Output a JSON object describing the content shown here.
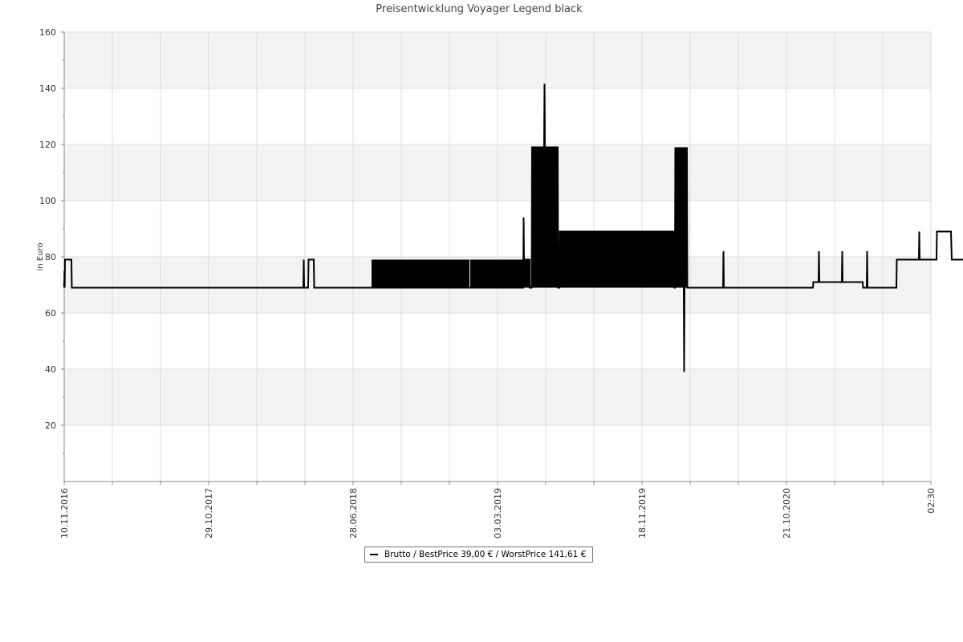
{
  "chart_data": {
    "type": "line",
    "title": "Preisentwicklung Voyager Legend black",
    "ylabel": "in Euro",
    "xlabel": "",
    "ylim": [
      0,
      160
    ],
    "yticks": [
      20,
      40,
      60,
      80,
      100,
      120,
      140,
      160
    ],
    "xticks": [
      "10.11.2016",
      "29.10.2017",
      "28.06.2018",
      "03.03.2019",
      "18.11.2019",
      "21.10.2020",
      "02:30"
    ],
    "grid": true,
    "legend_position": "bottom-center",
    "legend": {
      "name": "Brutto / BestPrice  39,00 € / WorstPrice  141,61 €"
    },
    "series": [
      {
        "color": "#000000",
        "points": [
          [
            0,
            69
          ],
          [
            0.3,
            75
          ],
          [
            0.6,
            69
          ],
          [
            1,
            79
          ],
          [
            9,
            79
          ],
          [
            9.5,
            69
          ],
          [
            298,
            69
          ],
          [
            298.5,
            79
          ],
          [
            299,
            69
          ],
          [
            304,
            69
          ],
          [
            304.5,
            79
          ],
          [
            311,
            79
          ],
          [
            311.5,
            69
          ],
          [
            500,
            69
          ],
          [
            500.5,
            79
          ],
          [
            501,
            69
          ],
          [
            572,
            69
          ],
          [
            572.5,
            94
          ],
          [
            573,
            79
          ],
          [
            580,
            79
          ],
          [
            580,
            69
          ],
          [
            582.5,
            69
          ],
          [
            583,
            119
          ],
          [
            598,
            119
          ],
          [
            598.5,
            141.6
          ],
          [
            599,
            119
          ],
          [
            615,
            119
          ],
          [
            615.5,
            69
          ],
          [
            617,
            69
          ],
          [
            617.5,
            89
          ],
          [
            760,
            89
          ],
          [
            760.5,
            69
          ],
          [
            761,
            69
          ],
          [
            761.5,
            119
          ],
          [
            776,
            119
          ],
          [
            776.5,
            69
          ],
          [
            772,
            69
          ],
          [
            772.5,
            39
          ],
          [
            773,
            69
          ],
          [
            821,
            69
          ],
          [
            821.5,
            82
          ],
          [
            822,
            69
          ],
          [
            933,
            69
          ],
          [
            933.5,
            71
          ],
          [
            940,
            71
          ],
          [
            940.5,
            82
          ],
          [
            941,
            71
          ],
          [
            969,
            71
          ],
          [
            969.5,
            82
          ],
          [
            970,
            71
          ],
          [
            995,
            71
          ],
          [
            995.5,
            69
          ],
          [
            1000,
            69
          ],
          [
            1000.5,
            82
          ],
          [
            1001,
            69
          ],
          [
            1037,
            69
          ],
          [
            1037.5,
            79
          ],
          [
            1065,
            79
          ],
          [
            1065.5,
            89
          ],
          [
            1066,
            79
          ],
          [
            1087,
            79
          ],
          [
            1087.5,
            89
          ],
          [
            1105,
            89
          ],
          [
            1105.5,
            84
          ],
          [
            1106,
            79
          ],
          [
            1160,
            79
          ]
        ],
        "dense_blocks": [
          {
            "x_from": 383,
            "x_to": 505,
            "low": 69,
            "high": 79
          },
          {
            "x_from": 506,
            "x_to": 580,
            "low": 69,
            "high": 79
          },
          {
            "x_from": 583,
            "x_to": 615,
            "low": 69,
            "high": 119
          },
          {
            "x_from": 618,
            "x_to": 760,
            "low": 69,
            "high": 89
          },
          {
            "x_from": 761,
            "x_to": 776,
            "low": 69,
            "high": 119
          }
        ]
      }
    ]
  }
}
